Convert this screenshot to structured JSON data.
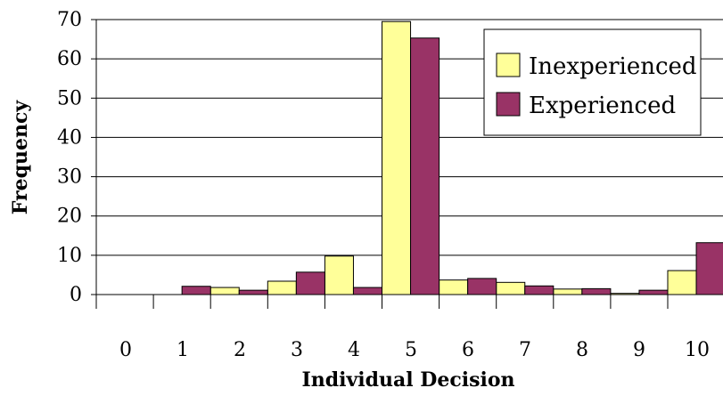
{
  "chart_data": {
    "type": "bar",
    "xlabel": "Individual Decision",
    "ylabel": "Frequency",
    "ylim": [
      0,
      70
    ],
    "yticks": [
      0,
      10,
      20,
      30,
      40,
      50,
      60,
      70
    ],
    "grid": true,
    "legend_position": "top-right",
    "categories": [
      "0",
      "1",
      "2",
      "3",
      "4",
      "5",
      "6",
      "7",
      "8",
      "9",
      "10"
    ],
    "series": [
      {
        "name": "Inexperienced",
        "color": "#ffff99",
        "values": [
          0,
          0,
          1.8,
          3.4,
          9.8,
          69.5,
          3.7,
          3.1,
          1.4,
          0.3,
          6.1
        ]
      },
      {
        "name": "Experienced",
        "color": "#993366",
        "values": [
          0,
          2.1,
          1.1,
          5.7,
          1.8,
          65.3,
          4.1,
          2.2,
          1.5,
          1.1,
          13.2
        ]
      }
    ]
  }
}
